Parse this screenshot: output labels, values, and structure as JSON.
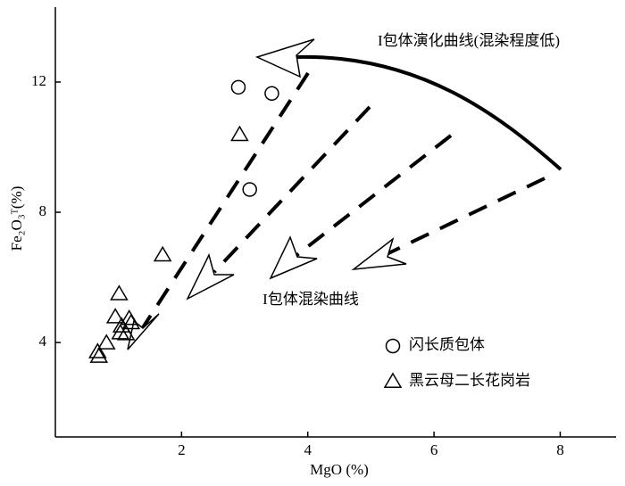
{
  "chart_data": {
    "type": "scatter",
    "x_label": "MgO (%)",
    "y_label": "Fe₂O₃ᵀ(%)",
    "xlim": [
      0,
      8.8
    ],
    "ylim": [
      1.1,
      14.3
    ],
    "xticks": [
      2,
      4,
      6,
      8
    ],
    "yticks": [
      4,
      8,
      12
    ],
    "annotations": [
      "I包体演化曲线(混染程度低)",
      "I包体混染曲线"
    ],
    "series": [
      {
        "name": "闪长质包体",
        "marker": "circle",
        "color": "#000000",
        "x": [
          2.9,
          3.43,
          3.08
        ],
        "y": [
          11.84,
          11.65,
          8.7
        ]
      },
      {
        "name": "黑云母二长花岗岩",
        "marker": "triangle",
        "color": "#000000",
        "x": [
          2.92,
          1.7,
          1.01,
          0.95,
          1.17,
          1.03,
          1.05,
          1.12,
          0.81,
          0.67,
          0.69,
          1.2
        ],
        "y": [
          10.38,
          6.68,
          5.49,
          4.78,
          4.73,
          4.29,
          4.5,
          4.26,
          3.98,
          3.71,
          3.57,
          4.6
        ]
      }
    ]
  }
}
